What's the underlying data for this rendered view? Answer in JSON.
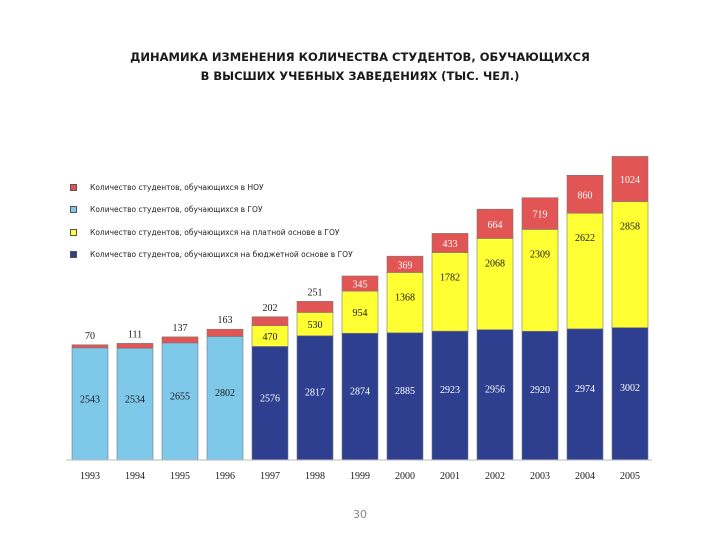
{
  "title": {
    "line1": "ДИНАМИКА ИЗМЕНЕНИЯ КОЛИЧЕСТВА СТУДЕНТОВ, ОБУЧАЮЩИХСЯ",
    "line2": "В ВЫСШИХ УЧЕБНЫХ ЗАВЕДЕНИЯХ (ТЫС. ЧЕЛ.)"
  },
  "legend": [
    {
      "label": "Количество студентов, обучающихся в НОУ",
      "color": "#e25555"
    },
    {
      "label": "Количество студентов, обучающихся в ГОУ",
      "color": "#7ec8ea"
    },
    {
      "label": "Количество студентов, обучающихся на платной основе в ГОУ",
      "color": "#ffff33"
    },
    {
      "label": "Количество студентов, обучающихся на бюджетной основе в ГОУ",
      "color": "#2e3f8f"
    }
  ],
  "page_number": "30",
  "chart_data": {
    "type": "bar",
    "stacked": true,
    "categories": [
      "1993",
      "1994",
      "1995",
      "1996",
      "1997",
      "1998",
      "1999",
      "2000",
      "2001",
      "2002",
      "2003",
      "2004",
      "2005"
    ],
    "series": [
      {
        "name": "Количество студентов, обучающихся в ГОУ",
        "color": "#7ec8ea",
        "values": [
          2543,
          2534,
          2655,
          2802,
          null,
          null,
          null,
          null,
          null,
          null,
          null,
          null,
          null
        ]
      },
      {
        "name": "Количество студентов, обучающихся на бюджетной основе в ГОУ",
        "color": "#2e3f8f",
        "values": [
          null,
          null,
          null,
          null,
          2576,
          2817,
          2874,
          2885,
          2923,
          2956,
          2920,
          2974,
          3002
        ]
      },
      {
        "name": "Количество студентов, обучающихся на платной основе в ГОУ",
        "color": "#ffff33",
        "values": [
          null,
          null,
          null,
          null,
          470,
          530,
          954,
          1368,
          1782,
          2068,
          2309,
          2622,
          2858
        ]
      },
      {
        "name": "Количество студентов, обучающихся в НОУ",
        "color": "#e25555",
        "values": [
          70,
          111,
          137,
          163,
          202,
          251,
          345,
          369,
          433,
          664,
          719,
          860,
          1024
        ]
      }
    ],
    "ylim": [
      0,
      7000
    ],
    "grid": false,
    "legend_position": "top-left"
  }
}
